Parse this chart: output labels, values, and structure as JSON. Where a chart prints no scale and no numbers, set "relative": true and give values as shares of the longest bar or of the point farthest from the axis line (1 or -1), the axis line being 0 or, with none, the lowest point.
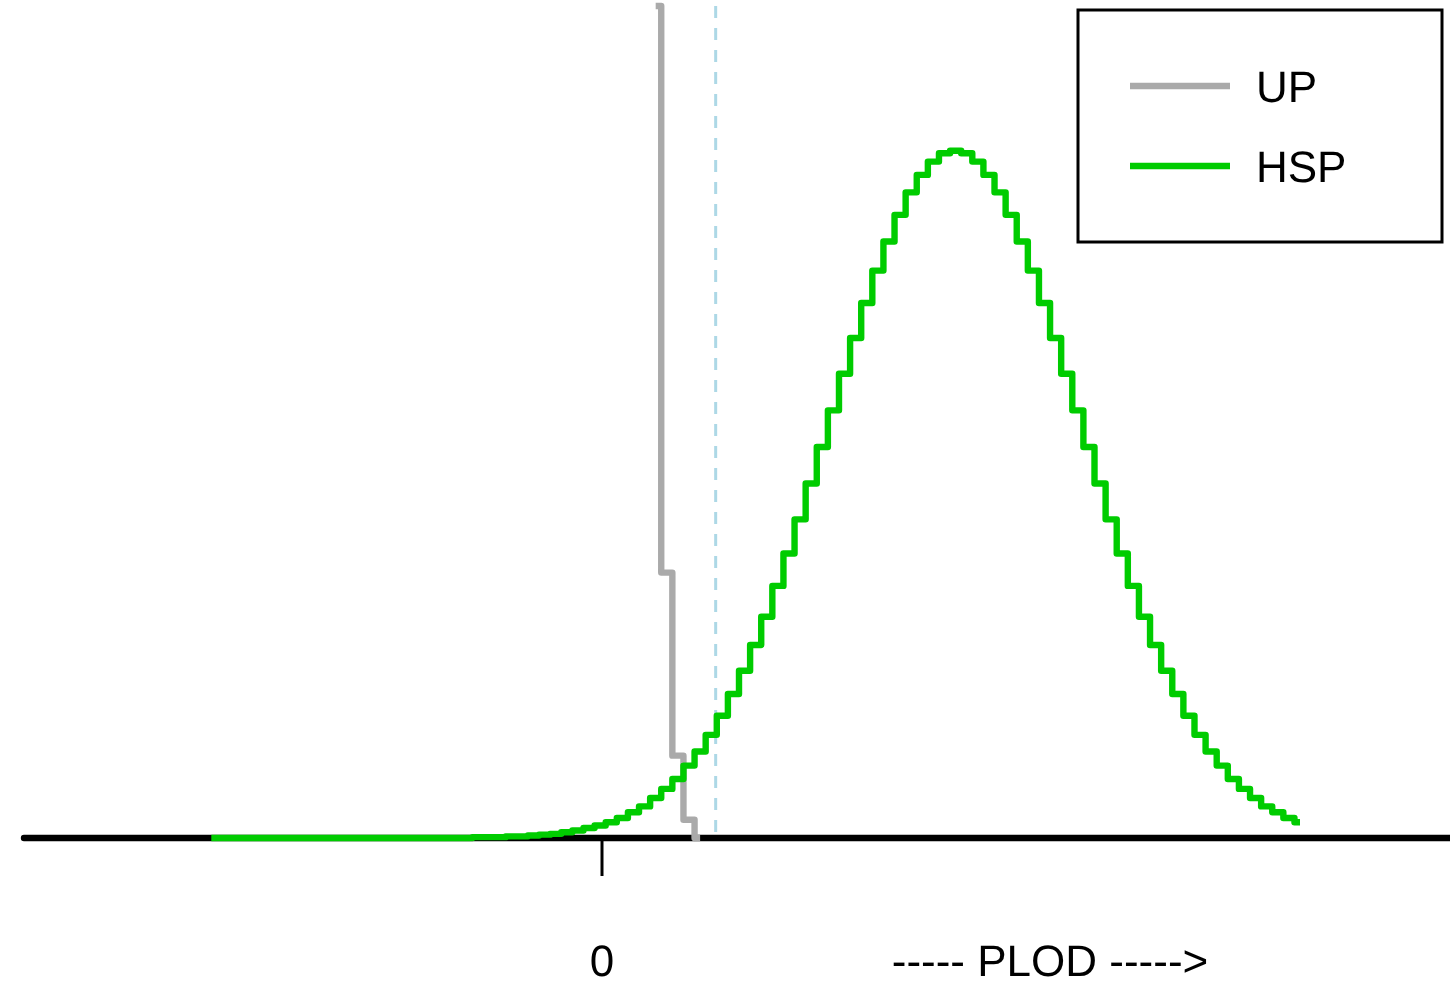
{
  "chart_data": {
    "type": "step",
    "relative": true,
    "xlabel": "----- PLOD ----->",
    "legend": "top right",
    "marker": "none",
    "line_style": "solid",
    "annotations": [
      "0"
    ],
    "categories": [
      null,
      null,
      null,
      null,
      null,
      null,
      null,
      null,
      null,
      null,
      null,
      null,
      null,
      null,
      null,
      null,
      null,
      null,
      null,
      null,
      null,
      null,
      null,
      null,
      null,
      null,
      null,
      null,
      null,
      null,
      null,
      null,
      null,
      null,
      null,
      null,
      null,
      null,
      null,
      null,
      null,
      null,
      null,
      null,
      null,
      null,
      null,
      null,
      null,
      null,
      null,
      null,
      null,
      null,
      null,
      null,
      null,
      null,
      null,
      null,
      null,
      null,
      null,
      null,
      null,
      null,
      null,
      null,
      null,
      null,
      null,
      null,
      null,
      null,
      null,
      null,
      null,
      null,
      null,
      null,
      null,
      null,
      null,
      null,
      null,
      null,
      null,
      null,
      null,
      null,
      null,
      null,
      null,
      null,
      null,
      null,
      null,
      null,
      null,
      null,
      null,
      null,
      null,
      null,
      null,
      null,
      null,
      null,
      null,
      null,
      null,
      null,
      null,
      null,
      null,
      null,
      null,
      null,
      null,
      null,
      null,
      null,
      null,
      null,
      null,
      null,
      null,
      null
    ],
    "series": [
      {
        "name": "UP",
        "color": "#aaaaaa",
        "values": [
          null,
          null,
          null,
          null,
          null,
          null,
          null,
          null,
          null,
          null,
          null,
          null,
          null,
          null,
          null,
          null,
          null,
          null,
          null,
          null,
          null,
          null,
          null,
          null,
          null,
          null,
          null,
          null,
          null,
          null,
          null,
          null,
          null,
          null,
          null,
          null,
          null,
          null,
          null,
          null,
          null,
          null,
          null,
          null,
          null,
          null,
          null,
          null,
          null,
          null,
          null,
          null,
          null,
          null,
          null,
          null,
          1,
          0.319,
          0.099,
          0.022,
          0,
          null,
          null,
          null,
          null,
          null,
          null,
          null,
          null,
          null,
          null,
          null,
          null,
          null,
          null,
          null,
          null,
          null,
          null,
          null,
          null,
          null,
          null,
          null,
          null,
          null,
          null,
          null,
          null,
          null,
          null,
          null,
          null,
          null,
          null,
          null,
          null,
          null,
          null,
          null,
          null,
          null,
          null,
          null,
          null,
          null,
          null,
          null,
          null,
          null,
          null,
          null,
          null,
          null,
          null,
          null,
          null,
          null,
          null,
          null,
          null,
          null,
          null,
          null,
          null,
          null,
          null,
          null
        ]
      },
      {
        "name": "HSP",
        "color": "#00cc00",
        "values": [
          null,
          null,
          null,
          null,
          null,
          null,
          null,
          null,
          null,
          null,
          null,
          null,
          null,
          null,
          null,
          null,
          0,
          0,
          0,
          0,
          0,
          0,
          0,
          0,
          0,
          0,
          0,
          0,
          0,
          0,
          0,
          0,
          0,
          0,
          0,
          0,
          0,
          0,
          0,
          0,
          0.001,
          0.001,
          0.001,
          0.002,
          0.002,
          0.003,
          0.004,
          0.005,
          0.007,
          0.009,
          0.012,
          0.015,
          0.019,
          0.024,
          0.031,
          0.038,
          0.048,
          0.059,
          0.071,
          0.087,
          0.104,
          0.124,
          0.147,
          0.173,
          0.201,
          0.232,
          0.266,
          0.303,
          0.342,
          0.383,
          0.426,
          0.47,
          0.514,
          0.558,
          0.601,
          0.643,
          0.682,
          0.717,
          0.749,
          0.776,
          0.797,
          0.813,
          0.823,
          0.826,
          0.823,
          0.813,
          0.797,
          0.776,
          0.749,
          0.717,
          0.682,
          0.643,
          0.601,
          0.558,
          0.514,
          0.47,
          0.426,
          0.383,
          0.342,
          0.303,
          0.266,
          0.232,
          0.201,
          0.173,
          0.147,
          0.124,
          0.104,
          0.087,
          0.071,
          0.059,
          0.048,
          0.038,
          0.031,
          0.024,
          0.019,
          null,
          null,
          null,
          null,
          null,
          null,
          null,
          null,
          null,
          null,
          null,
          null,
          null
        ]
      }
    ]
  }
}
